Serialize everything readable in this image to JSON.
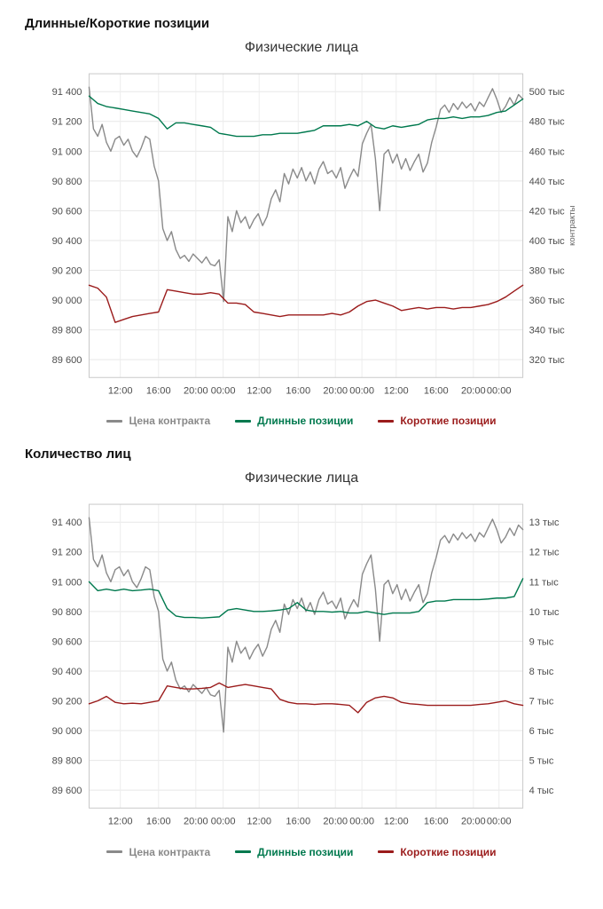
{
  "sections": [
    {
      "heading": "Длинные/Короткие позиции"
    },
    {
      "heading": "Количество лиц"
    }
  ],
  "chart_data": [
    {
      "type": "line",
      "title": "Физические лица",
      "right_axis_label": "контракты",
      "grid": true,
      "legend_position": "bottom",
      "x_axis": {
        "labels": [
          "12:00",
          "16:00",
          "20:00",
          "00:00",
          "12:00",
          "16:00",
          "20:00",
          "00:00",
          "12:00",
          "16:00",
          "20:00",
          "00:00"
        ],
        "positions": [
          0.072,
          0.16,
          0.246,
          0.309,
          0.392,
          0.482,
          0.568,
          0.629,
          0.708,
          0.8,
          0.886,
          0.945
        ]
      },
      "left_axis": {
        "range": [
          89480,
          91520
        ],
        "ticks": [
          89600,
          89800,
          90000,
          90200,
          90400,
          90600,
          90800,
          91000,
          91200,
          91400
        ],
        "labels": [
          "89 600",
          "89 800",
          "90 000",
          "90 200",
          "90 400",
          "90 600",
          "90 800",
          "91 000",
          "91 200",
          "91 400"
        ]
      },
      "right_axis": {
        "range": [
          308,
          512
        ],
        "ticks": [
          320,
          340,
          360,
          380,
          400,
          420,
          440,
          460,
          480,
          500
        ],
        "labels": [
          "320 тыс",
          "340 тыс",
          "360 тыс",
          "380 тыс",
          "400 тыс",
          "420 тыс",
          "440 тыс",
          "460 тыс",
          "480 тыс",
          "500 тыс"
        ]
      },
      "series": [
        {
          "name": "Цена контракта",
          "color": "#8a8a8a",
          "axis": "left",
          "values": [
            91430,
            91150,
            91100,
            91180,
            91060,
            91000,
            91080,
            91100,
            91040,
            91080,
            91000,
            90960,
            91020,
            91100,
            91080,
            90900,
            90800,
            90480,
            90400,
            90460,
            90340,
            90280,
            90300,
            90260,
            90310,
            90280,
            90250,
            90290,
            90240,
            90230,
            90270,
            89990,
            90560,
            90460,
            90600,
            90520,
            90560,
            90480,
            90540,
            90580,
            90500,
            90560,
            90680,
            90740,
            90660,
            90850,
            90780,
            90880,
            90820,
            90890,
            90800,
            90860,
            90780,
            90880,
            90930,
            90850,
            90870,
            90820,
            90890,
            90750,
            90820,
            90880,
            90830,
            91050,
            91120,
            91180,
            90950,
            90600,
            90980,
            91010,
            90920,
            90980,
            90880,
            90950,
            90870,
            90930,
            90980,
            90860,
            90920,
            91060,
            91160,
            91280,
            91310,
            91260,
            91320,
            91280,
            91330,
            91290,
            91320,
            91270,
            91330,
            91300,
            91360,
            91420,
            91350,
            91260,
            91300,
            91360,
            91310,
            91380,
            91350
          ]
        },
        {
          "name": "Длинные позиции",
          "color": "#00794e",
          "axis": "right",
          "values": [
            497,
            492,
            490,
            489,
            488,
            487,
            486,
            485,
            482,
            475,
            479,
            479,
            478,
            477,
            476,
            472,
            471,
            470,
            470,
            470,
            471,
            471,
            472,
            472,
            472,
            473,
            474,
            477,
            477,
            477,
            478,
            477,
            480,
            476,
            475,
            477,
            476,
            477,
            478,
            481,
            482,
            482,
            483,
            482,
            483,
            483,
            484,
            486,
            487,
            491,
            495
          ]
        },
        {
          "name": "Короткие позиции",
          "color": "#9b1c1c",
          "axis": "right",
          "values": [
            370,
            368,
            362,
            345,
            347,
            349,
            350,
            351,
            352,
            367,
            366,
            365,
            364,
            364,
            365,
            364,
            358,
            358,
            357,
            352,
            351,
            350,
            349,
            350,
            350,
            350,
            350,
            350,
            351,
            350,
            352,
            356,
            359,
            360,
            358,
            356,
            353,
            354,
            355,
            354,
            355,
            355,
            354,
            355,
            355,
            356,
            357,
            359,
            362,
            366,
            370
          ]
        }
      ]
    },
    {
      "type": "line",
      "title": "Физические лица",
      "right_axis_label": "",
      "grid": true,
      "legend_position": "bottom",
      "x_axis": {
        "labels": [
          "12:00",
          "16:00",
          "20:00",
          "00:00",
          "12:00",
          "16:00",
          "20:00",
          "00:00",
          "12:00",
          "16:00",
          "20:00",
          "00:00"
        ],
        "positions": [
          0.072,
          0.16,
          0.246,
          0.309,
          0.392,
          0.482,
          0.568,
          0.629,
          0.708,
          0.8,
          0.886,
          0.945
        ]
      },
      "left_axis": {
        "range": [
          89480,
          91520
        ],
        "ticks": [
          89600,
          89800,
          90000,
          90200,
          90400,
          90600,
          90800,
          91000,
          91200,
          91400
        ],
        "labels": [
          "89 600",
          "89 800",
          "90 000",
          "90 200",
          "90 400",
          "90 600",
          "90 800",
          "91 000",
          "91 200",
          "91 400"
        ]
      },
      "right_axis": {
        "range": [
          3.4,
          13.6
        ],
        "ticks": [
          4,
          5,
          6,
          7,
          8,
          9,
          10,
          11,
          12,
          13
        ],
        "labels": [
          "4 тыс",
          "5 тыс",
          "6 тыс",
          "7 тыс",
          "8 тыс",
          "9 тыс",
          "10 тыс",
          "11 тыс",
          "12 тыс",
          "13 тыс"
        ]
      },
      "series": [
        {
          "name": "Цена контракта",
          "color": "#8a8a8a",
          "axis": "left",
          "values": [
            91430,
            91150,
            91100,
            91180,
            91060,
            91000,
            91080,
            91100,
            91040,
            91080,
            91000,
            90960,
            91020,
            91100,
            91080,
            90900,
            90800,
            90480,
            90400,
            90460,
            90340,
            90280,
            90300,
            90260,
            90310,
            90280,
            90250,
            90290,
            90240,
            90230,
            90270,
            89990,
            90560,
            90460,
            90600,
            90520,
            90560,
            90480,
            90540,
            90580,
            90500,
            90560,
            90680,
            90740,
            90660,
            90850,
            90780,
            90880,
            90820,
            90890,
            90800,
            90860,
            90780,
            90880,
            90930,
            90850,
            90870,
            90820,
            90890,
            90750,
            90820,
            90880,
            90830,
            91050,
            91120,
            91180,
            90950,
            90600,
            90980,
            91010,
            90920,
            90980,
            90880,
            90950,
            90870,
            90930,
            90980,
            90860,
            90920,
            91060,
            91160,
            91280,
            91310,
            91260,
            91320,
            91280,
            91330,
            91290,
            91320,
            91270,
            91330,
            91300,
            91360,
            91420,
            91350,
            91260,
            91300,
            91360,
            91310,
            91380,
            91350
          ]
        },
        {
          "name": "Длинные позиции",
          "color": "#00794e",
          "axis": "right",
          "values": [
            11,
            10.7,
            10.75,
            10.7,
            10.75,
            10.7,
            10.72,
            10.75,
            10.7,
            10.1,
            9.85,
            9.8,
            9.8,
            9.78,
            9.8,
            9.82,
            10.05,
            10.1,
            10.05,
            10,
            10,
            10.02,
            10.05,
            10.1,
            10.3,
            10.05,
            10,
            10,
            9.98,
            10,
            9.95,
            9.95,
            10,
            9.95,
            9.9,
            9.95,
            9.95,
            9.95,
            10,
            10.3,
            10.35,
            10.35,
            10.4,
            10.4,
            10.4,
            10.4,
            10.42,
            10.45,
            10.45,
            10.5,
            11.1
          ]
        },
        {
          "name": "Короткие позиции",
          "color": "#9b1c1c",
          "axis": "right",
          "values": [
            6.9,
            7,
            7.15,
            6.95,
            6.9,
            6.92,
            6.9,
            6.95,
            7,
            7.5,
            7.45,
            7.4,
            7.4,
            7.42,
            7.45,
            7.6,
            7.45,
            7.5,
            7.55,
            7.5,
            7.45,
            7.4,
            7.05,
            6.95,
            6.9,
            6.9,
            6.88,
            6.9,
            6.9,
            6.88,
            6.85,
            6.6,
            6.95,
            7.1,
            7.15,
            7.1,
            6.95,
            6.9,
            6.88,
            6.85,
            6.85,
            6.85,
            6.85,
            6.85,
            6.85,
            6.88,
            6.9,
            6.95,
            7,
            6.9,
            6.85
          ]
        }
      ]
    }
  ]
}
